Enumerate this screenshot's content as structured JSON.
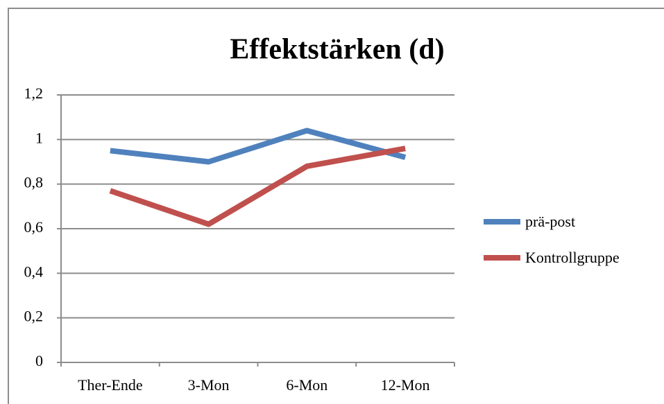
{
  "chart_data": {
    "type": "line",
    "title": "Effektstärken (d)",
    "categories": [
      "Ther-Ende",
      "3-Mon",
      "6-Mon",
      "12-Mon"
    ],
    "series": [
      {
        "name": "prä-post",
        "color": "#4f81bd",
        "values": [
          0.95,
          0.9,
          1.04,
          0.92
        ]
      },
      {
        "name": "Kontrollgruppe",
        "color": "#c0504d",
        "values": [
          0.77,
          0.62,
          0.88,
          0.96
        ]
      }
    ],
    "ylim": [
      0,
      1.2
    ],
    "yticks": [
      0,
      {
        "value": 0.2,
        "label": "0,2"
      },
      {
        "value": 0.4,
        "label": "0,4"
      },
      {
        "value": 0.6,
        "label": "0,6"
      },
      {
        "value": 0.8,
        "label": "0,8"
      },
      1,
      {
        "value": 1.2,
        "label": "1,2"
      }
    ],
    "grid": true,
    "legend": "right"
  }
}
